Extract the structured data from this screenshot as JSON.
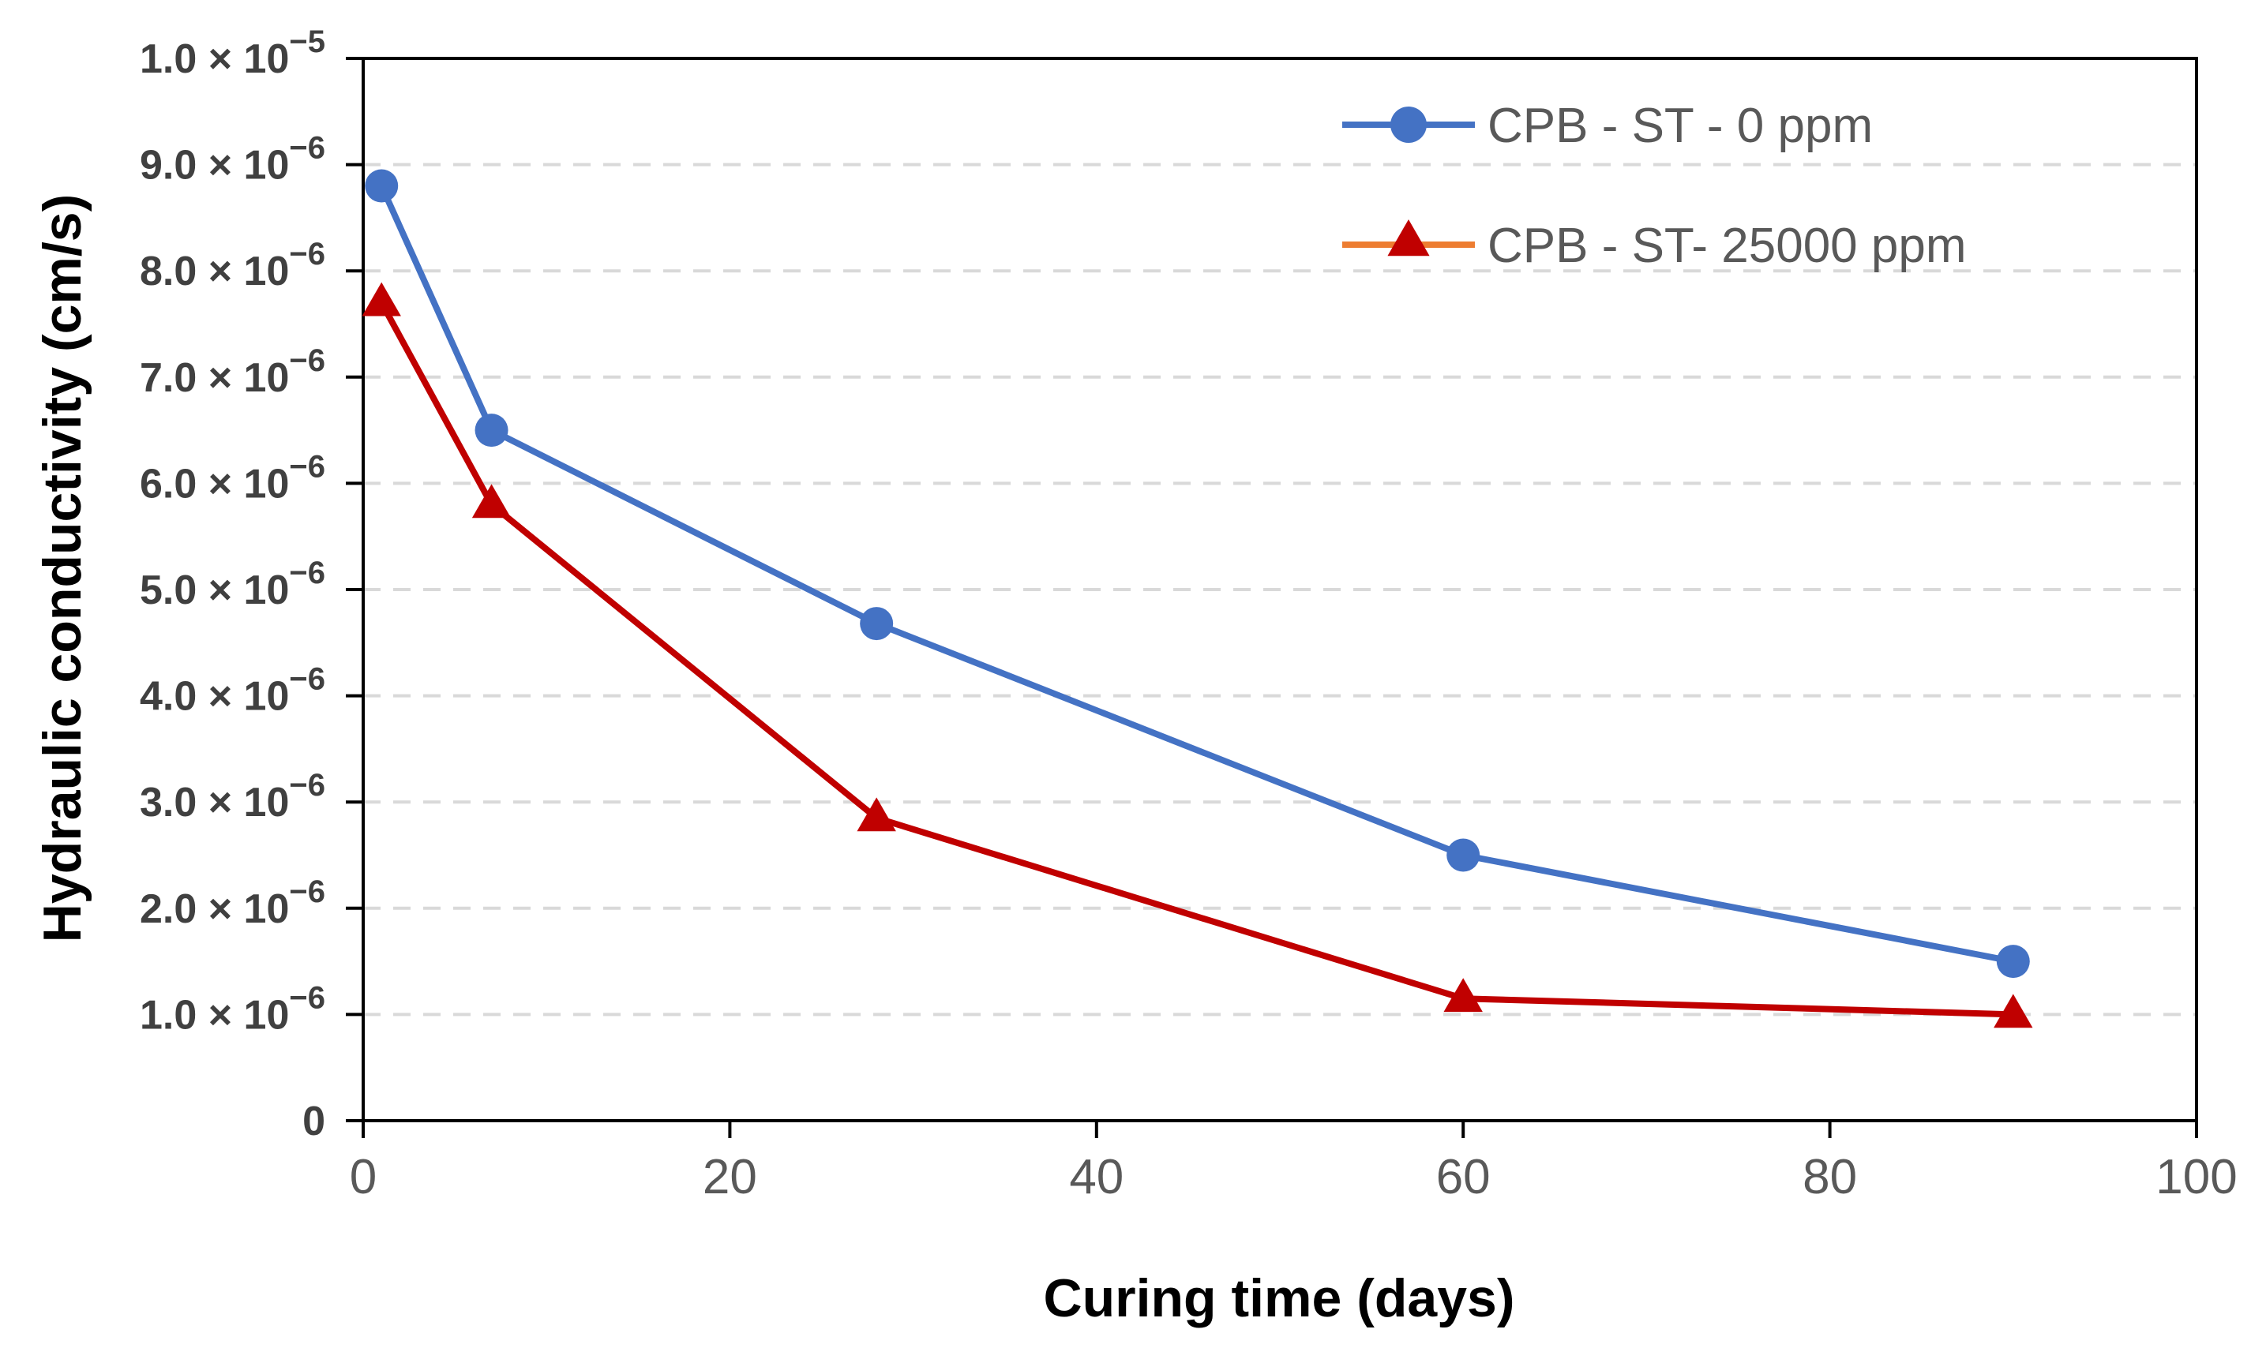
{
  "chart_data": {
    "type": "line",
    "title": "",
    "xlabel": "Curing time (days)",
    "ylabel": "Hydraulic conductivity (cm/s)",
    "xlim": [
      0,
      100
    ],
    "ylim": [
      0,
      1e-05
    ],
    "x_ticks": [
      0,
      20,
      40,
      60,
      80,
      100
    ],
    "x_tick_labels": [
      "0",
      "20",
      "40",
      "60",
      "80",
      "100"
    ],
    "y_ticks": [
      0,
      1e-06,
      2e-06,
      3e-06,
      4e-06,
      5e-06,
      6e-06,
      7e-06,
      8e-06,
      9e-06,
      1e-05
    ],
    "y_tick_labels": [
      {
        "mantissa": "0",
        "exponent": ""
      },
      {
        "mantissa": "1.0 × 10",
        "exponent": "−6"
      },
      {
        "mantissa": "2.0 × 10",
        "exponent": "−6"
      },
      {
        "mantissa": "3.0 × 10",
        "exponent": "−6"
      },
      {
        "mantissa": "4.0 × 10",
        "exponent": "−6"
      },
      {
        "mantissa": "5.0 × 10",
        "exponent": "−6"
      },
      {
        "mantissa": "6.0 × 10",
        "exponent": "−6"
      },
      {
        "mantissa": "7.0 × 10",
        "exponent": "−6"
      },
      {
        "mantissa": "8.0 × 10",
        "exponent": "−6"
      },
      {
        "mantissa": "9.0 × 10",
        "exponent": "−6"
      },
      {
        "mantissa": "1.0 × 10",
        "exponent": "−5"
      }
    ],
    "grid": "horizontal dashed",
    "legend_position": "top-right",
    "series": [
      {
        "name": "CPB - ST - 0 ppm",
        "marker": "circle",
        "color": "#4472C4",
        "x": [
          1,
          7,
          28,
          60,
          90
        ],
        "values": [
          8.8e-06,
          6.5e-06,
          4.68e-06,
          2.5e-06,
          1.5e-06
        ]
      },
      {
        "name": "CPB - ST- 25000 ppm",
        "marker": "triangle",
        "color": "#C00000",
        "legend_line_color": "#ED7D31",
        "x": [
          1,
          7,
          28,
          60,
          90
        ],
        "values": [
          7.7e-06,
          5.8e-06,
          2.85e-06,
          1.15e-06,
          1e-06
        ]
      }
    ]
  }
}
